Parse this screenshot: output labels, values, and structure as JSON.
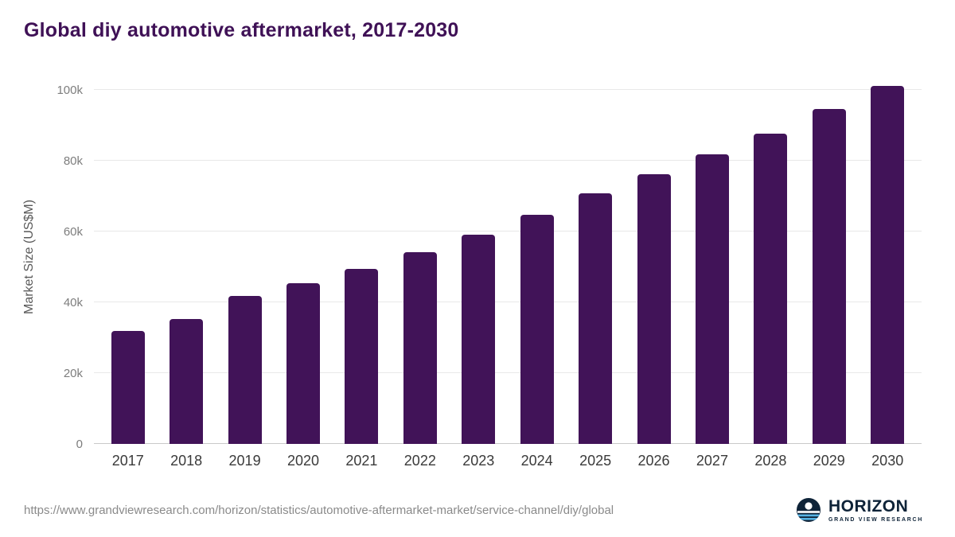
{
  "page": {
    "title": "Global diy automotive aftermarket, 2017-2030"
  },
  "chart_data": {
    "type": "bar",
    "title": "Global diy automotive aftermarket, 2017-2030",
    "categories": [
      "2017",
      "2018",
      "2019",
      "2020",
      "2021",
      "2022",
      "2023",
      "2024",
      "2025",
      "2026",
      "2027",
      "2028",
      "2029",
      "2030"
    ],
    "values": [
      31900,
      35300,
      41800,
      45400,
      49400,
      54200,
      59100,
      64700,
      70600,
      76000,
      81800,
      87600,
      94400,
      101100
    ],
    "xlabel": "",
    "ylabel": "Market Size (US$M)",
    "ylim": [
      0,
      105500
    ],
    "yticks": [
      0,
      20000,
      40000,
      60000,
      80000,
      100000
    ],
    "ytick_labels": [
      "0",
      "20k",
      "40k",
      "60k",
      "80k",
      "100k"
    ],
    "grid": true,
    "legend": "none",
    "bar_color": "#411358"
  },
  "footer": {
    "source_url": "https://www.grandviewresearch.com/horizon/statistics/automotive-aftermarket-market/service-channel/diy/global",
    "logo_title": "HORIZON",
    "logo_subtitle": "GRAND VIEW RESEARCH"
  }
}
